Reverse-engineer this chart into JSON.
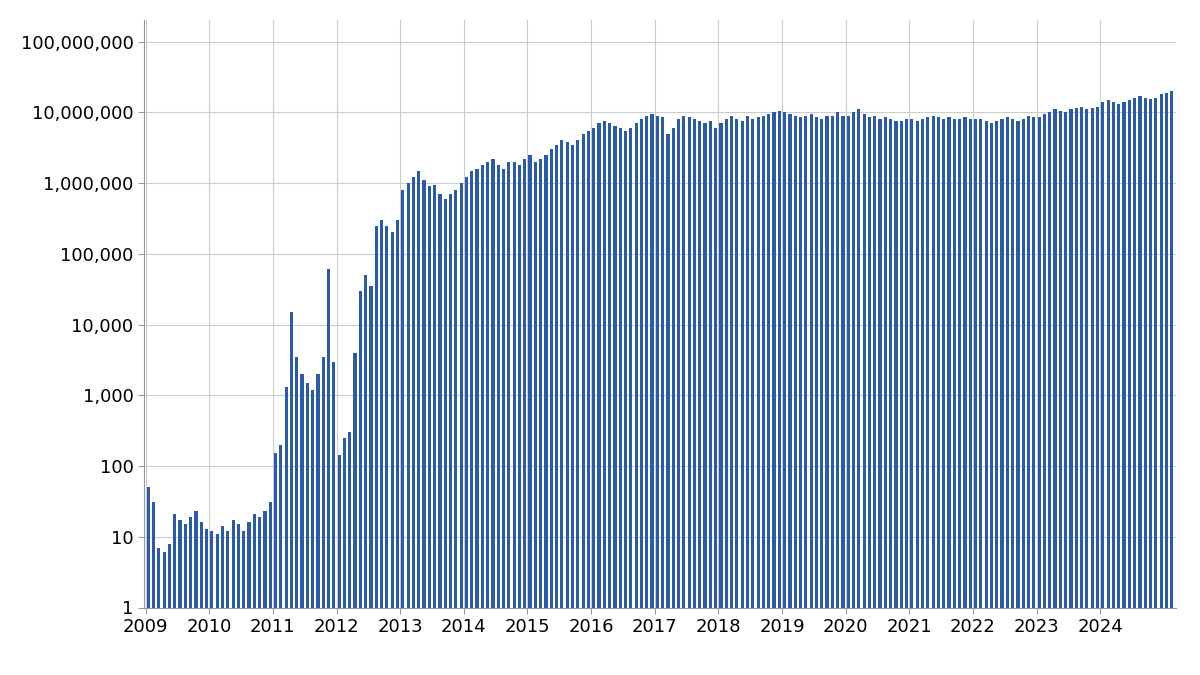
{
  "bar_color": "#2B5BA8",
  "bar_edge_color": "#2B5BA8",
  "background_color": "#ffffff",
  "grid_color": "#cccccc",
  "ylim": [
    1,
    200000000
  ],
  "yticks": [
    1,
    10,
    100,
    1000,
    10000,
    100000,
    1000000,
    10000000,
    100000000
  ],
  "ytick_labels": [
    "1",
    "10",
    "100",
    "1,000",
    "10,000",
    "100,000",
    "1,000,000",
    "10,000,000",
    "100,000,000"
  ],
  "monthly_volumes": [
    50,
    30,
    6,
    5,
    7,
    20,
    16,
    14,
    18,
    22,
    15,
    12,
    11,
    10,
    13,
    11,
    16,
    14,
    11,
    15,
    20,
    18,
    22,
    30,
    150,
    200,
    1300,
    15000,
    3500,
    2000,
    1500,
    1200,
    2000,
    3500,
    60000,
    3000,
    140,
    250,
    300,
    4000,
    30000,
    50000,
    35000,
    250000,
    300000,
    250000,
    200000,
    300000,
    800000,
    1000000,
    1200000,
    1500000,
    1100000,
    900000,
    950000,
    700000,
    600000,
    700000,
    800000,
    1000000,
    1200000,
    1500000,
    1600000,
    1800000,
    2000000,
    2200000,
    1800000,
    1600000,
    2000000,
    2000000,
    1800000,
    2200000,
    2500000,
    2000000,
    2200000,
    2500000,
    3000000,
    3500000,
    4000000,
    3800000,
    3500000,
    4000000,
    5000000,
    5500000,
    6000000,
    7000000,
    7500000,
    7000000,
    6500000,
    6000000,
    5500000,
    6000000,
    7000000,
    8000000,
    9000000,
    9500000,
    9000000,
    8500000,
    5000000,
    6000000,
    8000000,
    9000000,
    8500000,
    8000000,
    7500000,
    7000000,
    7500000,
    6000000,
    7000000,
    8000000,
    9000000,
    8000000,
    7500000,
    9000000,
    8000000,
    8500000,
    9000000,
    9500000,
    10000000,
    10500000,
    10000000,
    9500000,
    9000000,
    8500000,
    9000000,
    9500000,
    8500000,
    8000000,
    9000000,
    9000000,
    10000000,
    9000000,
    9000000,
    10000000,
    11000000,
    9500000,
    8500000,
    9000000,
    8000000,
    8500000,
    8000000,
    7500000,
    7500000,
    8000000,
    8000000,
    7500000,
    8000000,
    8500000,
    9000000,
    8500000,
    8000000,
    8500000,
    8000000,
    8000000,
    8500000,
    8000000,
    8000000,
    8000000,
    7500000,
    7000000,
    7500000,
    8000000,
    8500000,
    8000000,
    7500000,
    8000000,
    9000000,
    8500000,
    8500000,
    9500000,
    10000000,
    11000000,
    10500000,
    10000000,
    11000000,
    11500000,
    12000000,
    11000000,
    11500000,
    12000000,
    14000000,
    15000000,
    14000000,
    13000000,
    14000000,
    15000000,
    16000000,
    17000000,
    16000000,
    15500000,
    16000000,
    18000000,
    19000000,
    20000000
  ],
  "year_labels": [
    "2009",
    "2010",
    "2011",
    "2012",
    "2013",
    "2014",
    "2015",
    "2016",
    "2017",
    "2018",
    "2019",
    "2020",
    "2021",
    "2022",
    "2023",
    "2024"
  ],
  "fontsize_ticks": 13,
  "bar_width": 0.6
}
